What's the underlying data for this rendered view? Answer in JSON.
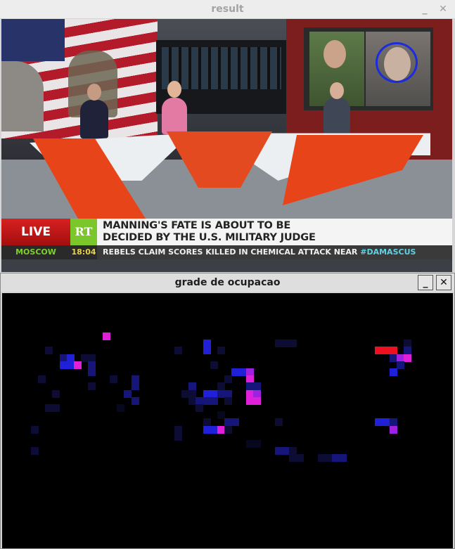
{
  "windows": {
    "result": {
      "title": "result",
      "minimize_glyph": "_",
      "close_glyph": "✕"
    },
    "grid": {
      "title": "grade de ocupacao",
      "minimize_glyph": "_",
      "close_glyph": "✕"
    }
  },
  "broadcast": {
    "live_label": "LIVE",
    "channel_logo": "RT",
    "headline_line1": "MANNING'S FATE IS ABOUT TO BE",
    "headline_line2": "DECIDED BY THE U.S. MILITARY JUDGE",
    "ticker_city": "MOSCOW",
    "ticker_time": "18:04",
    "ticker_text": "REBELS CLAIM SCORES KILLED IN CHEMICAL ATTACK NEAR",
    "ticker_tag": "#DAMASCUS"
  },
  "colors": {
    "live_red": "#c81818",
    "rt_green": "#7bc62a",
    "face_marker": "#1a2be0",
    "set_orange": "#e8441a"
  },
  "occupancy_grid": {
    "cell_colors": {
      "n": "#07071d",
      "d": "#0c0c35",
      "m": "#15157a",
      "b": "#2020d8",
      "v": "#a020e0",
      "p": "#e020d8",
      "r": "#ee1020"
    },
    "rows": [
      {
        "row": 0,
        "cells": [
          {
            "col": 14,
            "c": "p"
          }
        ]
      },
      {
        "row": 1,
        "cells": [
          {
            "col": 28,
            "c": "b"
          },
          {
            "col": 38,
            "c": "d"
          },
          {
            "col": 39,
            "c": "d"
          },
          {
            "col": 40,
            "c": "d"
          },
          {
            "col": 56,
            "c": "d"
          }
        ]
      },
      {
        "row": 2,
        "cells": [
          {
            "col": 6,
            "c": "d"
          },
          {
            "col": 24,
            "c": "d"
          },
          {
            "col": 28,
            "c": "b"
          },
          {
            "col": 30,
            "c": "d"
          },
          {
            "col": 52,
            "c": "r"
          },
          {
            "col": 53,
            "c": "r"
          },
          {
            "col": 54,
            "c": "r"
          },
          {
            "col": 56,
            "c": "m"
          }
        ]
      },
      {
        "row": 3,
        "cells": [
          {
            "col": 8,
            "c": "m"
          },
          {
            "col": 9,
            "c": "b"
          },
          {
            "col": 11,
            "c": "d"
          },
          {
            "col": 12,
            "c": "d"
          },
          {
            "col": 54,
            "c": "m"
          },
          {
            "col": 55,
            "c": "v"
          },
          {
            "col": 56,
            "c": "p"
          }
        ]
      },
      {
        "row": 4,
        "cells": [
          {
            "col": 8,
            "c": "b"
          },
          {
            "col": 9,
            "c": "b"
          },
          {
            "col": 10,
            "c": "p"
          },
          {
            "col": 12,
            "c": "m"
          },
          {
            "col": 29,
            "c": "d"
          },
          {
            "col": 55,
            "c": "m"
          }
        ]
      },
      {
        "row": 5,
        "cells": [
          {
            "col": 12,
            "c": "m"
          },
          {
            "col": 32,
            "c": "b"
          },
          {
            "col": 33,
            "c": "b"
          },
          {
            "col": 34,
            "c": "v"
          },
          {
            "col": 54,
            "c": "b"
          }
        ]
      },
      {
        "row": 6,
        "cells": [
          {
            "col": 5,
            "c": "d"
          },
          {
            "col": 15,
            "c": "d"
          },
          {
            "col": 18,
            "c": "m"
          },
          {
            "col": 31,
            "c": "d"
          },
          {
            "col": 34,
            "c": "p"
          }
        ]
      },
      {
        "row": 7,
        "cells": [
          {
            "col": 12,
            "c": "d"
          },
          {
            "col": 18,
            "c": "m"
          },
          {
            "col": 26,
            "c": "m"
          },
          {
            "col": 30,
            "c": "d"
          },
          {
            "col": 34,
            "c": "m"
          },
          {
            "col": 35,
            "c": "m"
          }
        ]
      },
      {
        "row": 8,
        "cells": [
          {
            "col": 7,
            "c": "d"
          },
          {
            "col": 17,
            "c": "m"
          },
          {
            "col": 25,
            "c": "d"
          },
          {
            "col": 26,
            "c": "d"
          },
          {
            "col": 28,
            "c": "b"
          },
          {
            "col": 29,
            "c": "b"
          },
          {
            "col": 30,
            "c": "m"
          },
          {
            "col": 31,
            "c": "m"
          },
          {
            "col": 34,
            "c": "p"
          },
          {
            "col": 35,
            "c": "v"
          }
        ]
      },
      {
        "row": 9,
        "cells": [
          {
            "col": 18,
            "c": "m"
          },
          {
            "col": 26,
            "c": "d"
          },
          {
            "col": 27,
            "c": "m"
          },
          {
            "col": 28,
            "c": "m"
          },
          {
            "col": 29,
            "c": "m"
          },
          {
            "col": 31,
            "c": "d"
          },
          {
            "col": 34,
            "c": "p"
          },
          {
            "col": 35,
            "c": "p"
          }
        ]
      },
      {
        "row": 10,
        "cells": [
          {
            "col": 6,
            "c": "d"
          },
          {
            "col": 7,
            "c": "d"
          },
          {
            "col": 16,
            "c": "n"
          },
          {
            "col": 27,
            "c": "d"
          }
        ]
      },
      {
        "row": 11,
        "cells": [
          {
            "col": 30,
            "c": "n"
          }
        ]
      },
      {
        "row": 12,
        "cells": [
          {
            "col": 28,
            "c": "d"
          },
          {
            "col": 31,
            "c": "m"
          },
          {
            "col": 32,
            "c": "m"
          },
          {
            "col": 38,
            "c": "d"
          },
          {
            "col": 52,
            "c": "b"
          },
          {
            "col": 53,
            "c": "b"
          },
          {
            "col": 54,
            "c": "m"
          }
        ]
      },
      {
        "row": 13,
        "cells": [
          {
            "col": 4,
            "c": "d"
          },
          {
            "col": 24,
            "c": "d"
          },
          {
            "col": 28,
            "c": "b"
          },
          {
            "col": 29,
            "c": "b"
          },
          {
            "col": 30,
            "c": "p"
          },
          {
            "col": 31,
            "c": "d"
          },
          {
            "col": 54,
            "c": "v"
          }
        ]
      },
      {
        "row": 14,
        "cells": [
          {
            "col": 24,
            "c": "d"
          }
        ]
      },
      {
        "row": 15,
        "cells": [
          {
            "col": 34,
            "c": "n"
          },
          {
            "col": 35,
            "c": "n"
          }
        ]
      },
      {
        "row": 16,
        "cells": [
          {
            "col": 4,
            "c": "d"
          },
          {
            "col": 38,
            "c": "m"
          },
          {
            "col": 39,
            "c": "m"
          },
          {
            "col": 40,
            "c": "d"
          }
        ]
      },
      {
        "row": 17,
        "cells": [
          {
            "col": 40,
            "c": "d"
          },
          {
            "col": 41,
            "c": "d"
          },
          {
            "col": 44,
            "c": "d"
          },
          {
            "col": 45,
            "c": "d"
          },
          {
            "col": 46,
            "c": "m"
          },
          {
            "col": 47,
            "c": "m"
          }
        ]
      }
    ]
  }
}
